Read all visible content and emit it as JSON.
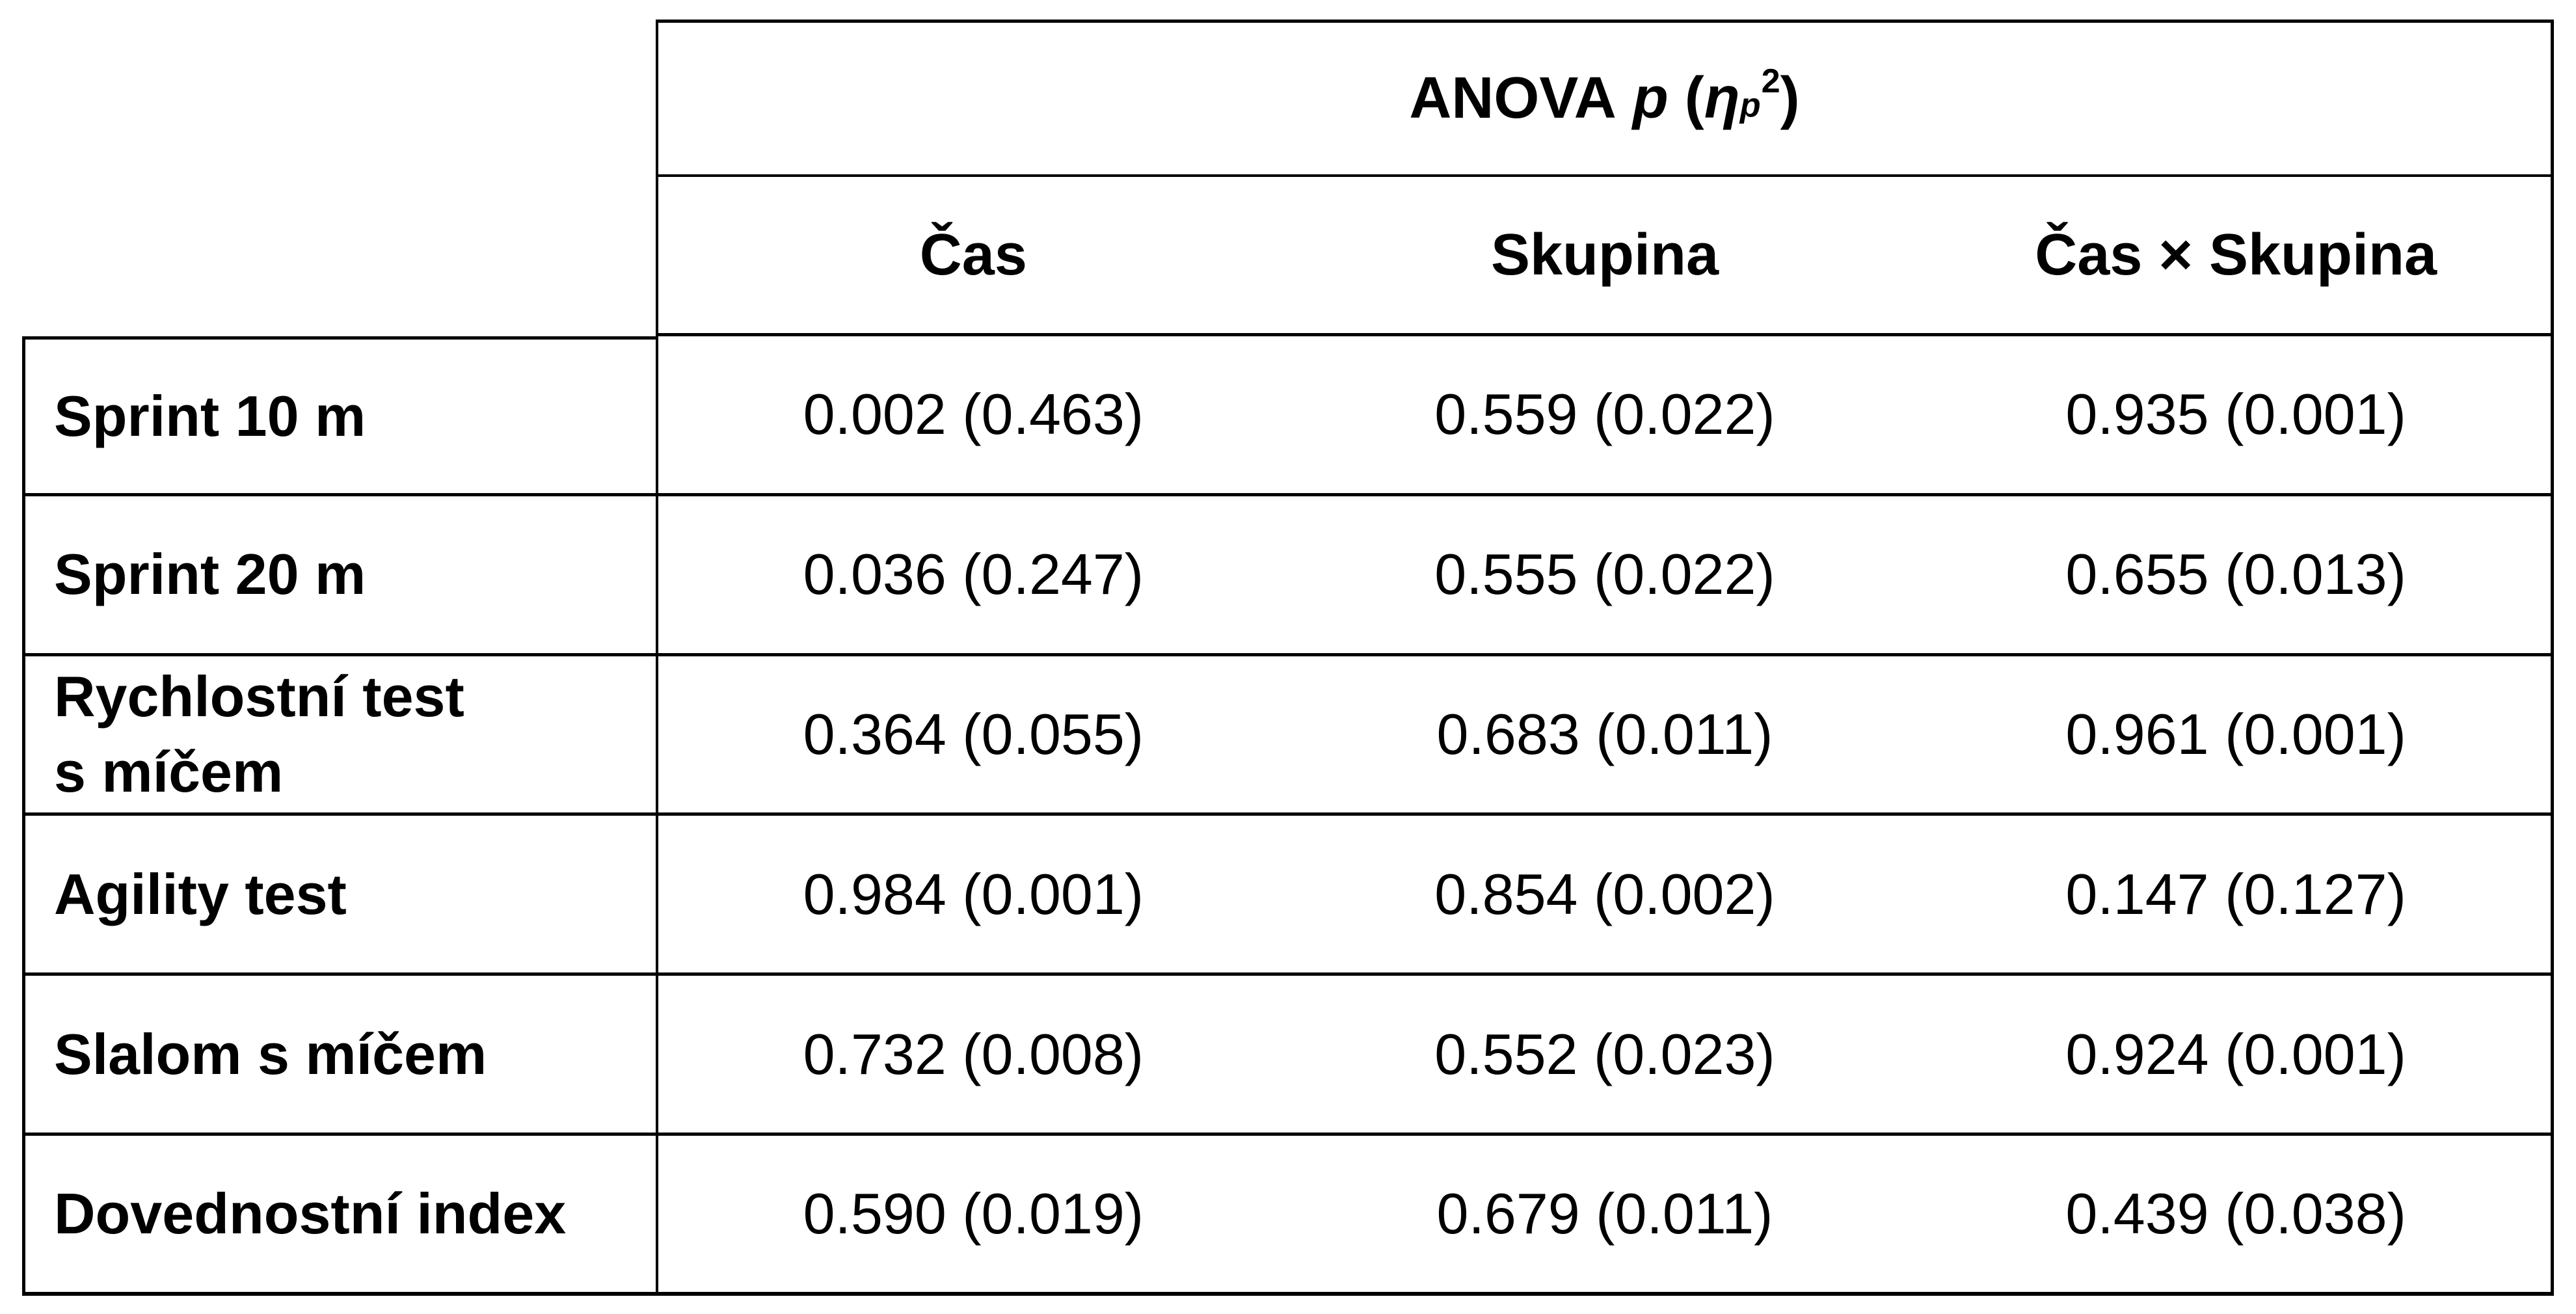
{
  "colors": {
    "background": "#ffffff",
    "text": "#000000",
    "border": "#000000"
  },
  "header": {
    "title_anova": "ANOVA",
    "title_p": "p",
    "title_paren_open": "(",
    "title_eta": "η",
    "title_eta_sub": "p",
    "title_eta_sup": "2",
    "title_paren_close": ")"
  },
  "chart_data": {
    "type": "table",
    "title": "ANOVA p (ηp²)",
    "column_headers": [
      "Čas",
      "Skupina",
      "Čas × Skupina"
    ],
    "row_headers": [
      "Sprint 10 m",
      "Sprint 20 m",
      "Rychlostní test\ns míčem",
      "Agility test",
      "Slalom s míčem",
      "Dovednostní index"
    ],
    "cells": [
      [
        "0.002 (0.463)",
        "0.559 (0.022)",
        "0.935 (0.001)"
      ],
      [
        "0.036 (0.247)",
        "0.555 (0.022)",
        "0.655 (0.013)"
      ],
      [
        "0.364 (0.055)",
        "0.683 (0.011)",
        "0.961 (0.001)"
      ],
      [
        "0.984 (0.001)",
        "0.854 (0.002)",
        "0.147 (0.127)"
      ],
      [
        "0.732 (0.008)",
        "0.552 (0.023)",
        "0.924 (0.001)"
      ],
      [
        "0.590 (0.019)",
        "0.679 (0.011)",
        "0.439 (0.038)"
      ]
    ]
  }
}
